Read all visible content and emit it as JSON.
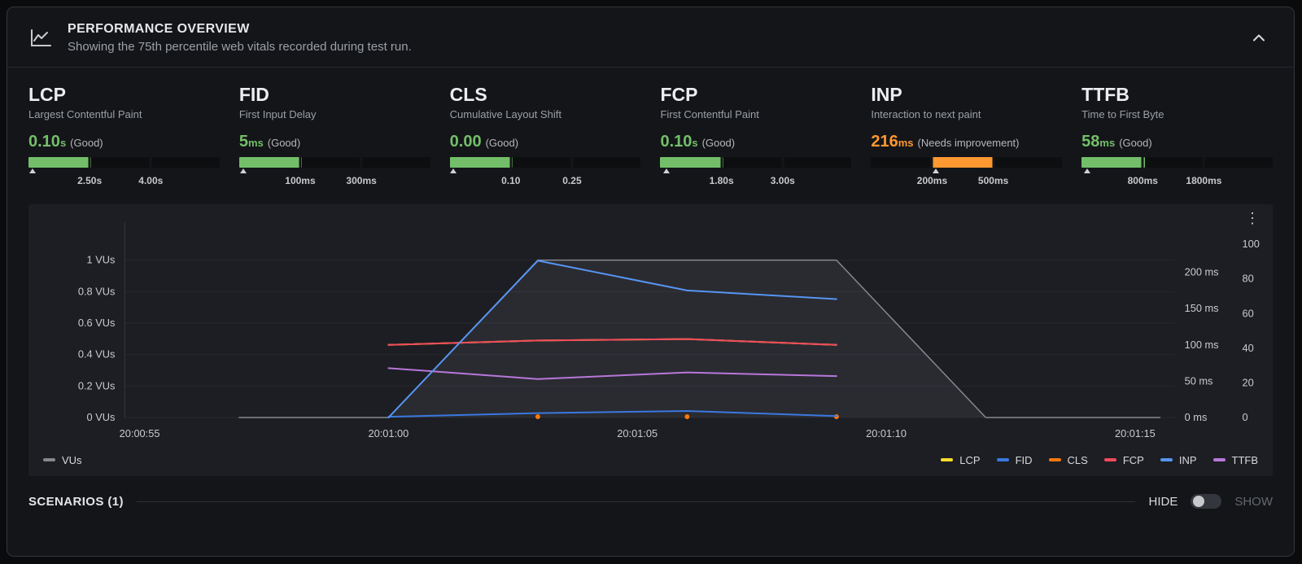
{
  "panel": {
    "title": "PERFORMANCE OVERVIEW",
    "subtitle": "Showing the 75th percentile web vitals recorded during test run.",
    "menu_icon": "⋮"
  },
  "vitals": [
    {
      "code": "LCP",
      "name": "Largest Contentful Paint",
      "value": "0.10",
      "unit": "s",
      "rating": "(Good)",
      "color": "#73bf69",
      "bar": {
        "fill_from": 0,
        "fill_to": 33,
        "caret": 2,
        "ticks": [
          {
            "label": "2.50s",
            "pct": 32
          },
          {
            "label": "4.00s",
            "pct": 64
          }
        ]
      }
    },
    {
      "code": "FID",
      "name": "First Input Delay",
      "value": "5",
      "unit": "ms",
      "rating": "(Good)",
      "color": "#73bf69",
      "bar": {
        "fill_from": 0,
        "fill_to": 33,
        "caret": 2,
        "ticks": [
          {
            "label": "100ms",
            "pct": 32
          },
          {
            "label": "300ms",
            "pct": 64
          }
        ]
      }
    },
    {
      "code": "CLS",
      "name": "Cumulative Layout Shift",
      "value": "0.00",
      "unit": "",
      "rating": "(Good)",
      "color": "#73bf69",
      "bar": {
        "fill_from": 0,
        "fill_to": 33,
        "caret": 2,
        "ticks": [
          {
            "label": "0.10",
            "pct": 32
          },
          {
            "label": "0.25",
            "pct": 64
          }
        ]
      }
    },
    {
      "code": "FCP",
      "name": "First Contentful Paint",
      "value": "0.10",
      "unit": "s",
      "rating": "(Good)",
      "color": "#73bf69",
      "bar": {
        "fill_from": 0,
        "fill_to": 33,
        "caret": 3,
        "ticks": [
          {
            "label": "1.80s",
            "pct": 32
          },
          {
            "label": "3.00s",
            "pct": 64
          }
        ]
      }
    },
    {
      "code": "INP",
      "name": "Interaction to next paint",
      "value": "216",
      "unit": "ms",
      "rating": "(Needs improvement)",
      "color": "#ff9830",
      "bar": {
        "fill_from": 32,
        "fill_to": 64,
        "caret": 34,
        "ticks": [
          {
            "label": "200ms",
            "pct": 32
          },
          {
            "label": "500ms",
            "pct": 64
          }
        ]
      }
    },
    {
      "code": "TTFB",
      "name": "Time to First Byte",
      "value": "58",
      "unit": "ms",
      "rating": "(Good)",
      "color": "#73bf69",
      "bar": {
        "fill_from": 0,
        "fill_to": 33,
        "caret": 3,
        "ticks": [
          {
            "label": "800ms",
            "pct": 32
          },
          {
            "label": "1800ms",
            "pct": 64
          }
        ]
      }
    }
  ],
  "chart_data": {
    "type": "line",
    "title": "",
    "x_unit": "seconds after 20:00:50",
    "x_domain": [
      4.7,
      25.8
    ],
    "x_ticks": [
      {
        "t": 5,
        "label": "20:00:55"
      },
      {
        "t": 10,
        "label": "20:01:00"
      },
      {
        "t": 15,
        "label": "20:01:05"
      },
      {
        "t": 20,
        "label": "20:01:10"
      },
      {
        "t": 25,
        "label": "20:01:15"
      }
    ],
    "y_left": {
      "name": "VUs",
      "domain": [
        0,
        1.2
      ],
      "ticks": [
        {
          "v": 0,
          "label": "0 VUs"
        },
        {
          "v": 0.2,
          "label": "0.2 VUs"
        },
        {
          "v": 0.4,
          "label": "0.4 VUs"
        },
        {
          "v": 0.6,
          "label": "0.6 VUs"
        },
        {
          "v": 0.8,
          "label": "0.8 VUs"
        },
        {
          "v": 1,
          "label": "1 VUs"
        }
      ]
    },
    "y_right_ms": {
      "name": "milliseconds",
      "domain": [
        0,
        260
      ],
      "ticks": [
        {
          "v": 0,
          "label": "0 ms"
        },
        {
          "v": 50,
          "label": "50 ms"
        },
        {
          "v": 100,
          "label": "100 ms"
        },
        {
          "v": 150,
          "label": "150 ms"
        },
        {
          "v": 200,
          "label": "200 ms"
        }
      ]
    },
    "y_right_score": {
      "name": "score",
      "domain": [
        0,
        109
      ],
      "ticks": [
        {
          "v": 0,
          "label": "0"
        },
        {
          "v": 20,
          "label": "20"
        },
        {
          "v": 40,
          "label": "40"
        },
        {
          "v": 60,
          "label": "60"
        },
        {
          "v": 80,
          "label": "80"
        },
        {
          "v": 100,
          "label": "100"
        }
      ]
    },
    "series": [
      {
        "name": "VUs",
        "axis": "left",
        "color": "#85888d",
        "fill": "rgba(204,204,220,0.08)",
        "points": [
          [
            7,
            0
          ],
          [
            10,
            0
          ],
          [
            13,
            1
          ],
          [
            19,
            1
          ],
          [
            22,
            0
          ],
          [
            25.5,
            0
          ]
        ]
      },
      {
        "name": "LCP",
        "axis": "ms",
        "color": "#fade2a",
        "points": [
          [
            10,
            100
          ],
          [
            13,
            106
          ],
          [
            16,
            108
          ],
          [
            19,
            100
          ]
        ]
      },
      {
        "name": "CLS",
        "axis": "ms",
        "color": "#ff780a",
        "style": "points",
        "points": [
          [
            13,
            0
          ],
          [
            16,
            0
          ],
          [
            19,
            0
          ]
        ]
      },
      {
        "name": "FCP",
        "axis": "ms",
        "color": "#f2495c",
        "points": [
          [
            10,
            100
          ],
          [
            13,
            106
          ],
          [
            16,
            108
          ],
          [
            19,
            100
          ]
        ]
      },
      {
        "name": "TTFB",
        "axis": "ms",
        "color": "#b877d9",
        "points": [
          [
            10,
            68
          ],
          [
            13,
            53
          ],
          [
            16,
            62
          ],
          [
            19,
            57
          ]
        ]
      },
      {
        "name": "FID",
        "axis": "ms",
        "color": "#3a78e0",
        "points": [
          [
            10,
            1
          ],
          [
            13,
            6
          ],
          [
            16,
            9
          ],
          [
            19,
            2
          ]
        ]
      },
      {
        "name": "INP",
        "axis": "ms",
        "color": "#5794f2",
        "points": [
          [
            10,
            0
          ],
          [
            13,
            216
          ],
          [
            16,
            175
          ],
          [
            19,
            163
          ]
        ]
      }
    ],
    "legend_position": "bottom",
    "legend_left": [
      {
        "label": "VUs",
        "color": "#85888d"
      }
    ],
    "legend_right": [
      {
        "label": "LCP",
        "color": "#fade2a"
      },
      {
        "label": "FID",
        "color": "#3a78e0"
      },
      {
        "label": "CLS",
        "color": "#ff780a"
      },
      {
        "label": "FCP",
        "color": "#f2495c"
      },
      {
        "label": "INP",
        "color": "#5794f2"
      },
      {
        "label": "TTFB",
        "color": "#b877d9"
      }
    ]
  },
  "scenarios": {
    "label": "SCENARIOS (1)",
    "hide_label": "HIDE",
    "show_label": "SHOW"
  }
}
